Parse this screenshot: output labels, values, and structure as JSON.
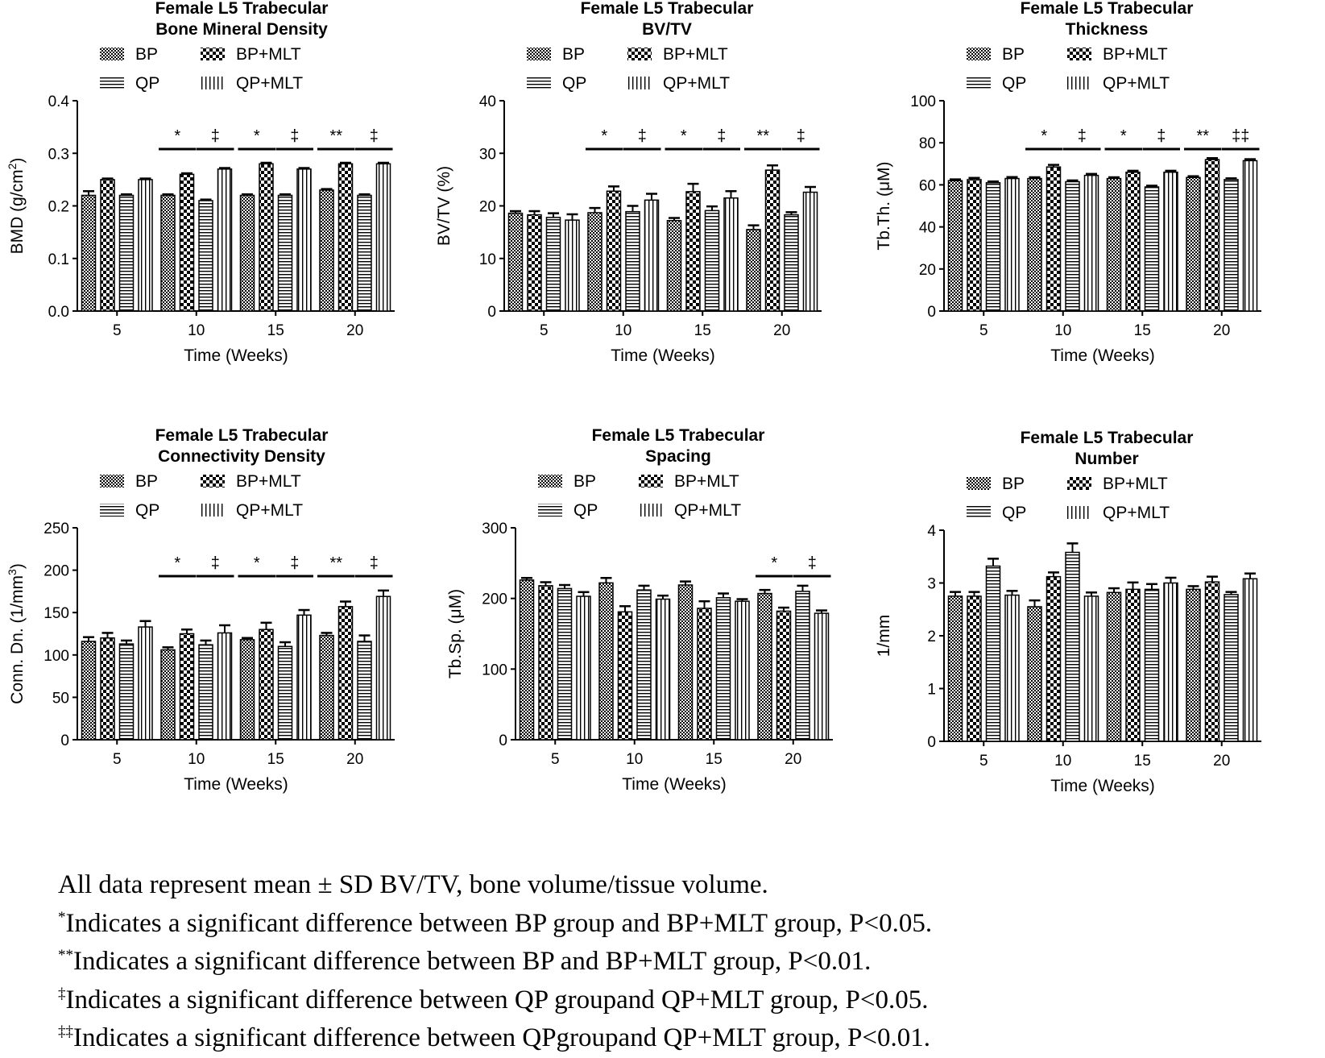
{
  "legend": {
    "bp": "BP",
    "bp_mlt": "BP+MLT",
    "qp": "QP",
    "qp_mlt": "QP+MLT"
  },
  "chart_data": [
    {
      "type": "bar",
      "title": [
        "Female L5 Trabecular",
        "Bone Mineral Density"
      ],
      "xlabel": "Time (Weeks)",
      "ylabel": "BMD (g/cm2)",
      "ylim": [
        0,
        0.4
      ],
      "yticks": [
        "0.0",
        "0.1",
        "0.2",
        "0.3",
        "0.4"
      ],
      "categories": [
        "5",
        "10",
        "15",
        "20"
      ],
      "series": [
        {
          "name": "BP",
          "values": [
            0.22,
            0.22,
            0.22,
            0.23
          ],
          "err": [
            0.008,
            0.002,
            0.002,
            0.002
          ]
        },
        {
          "name": "BP+MLT",
          "values": [
            0.25,
            0.26,
            0.28,
            0.28
          ],
          "err": [
            0.002,
            0.002,
            0.002,
            0.002
          ]
        },
        {
          "name": "QP",
          "values": [
            0.22,
            0.21,
            0.22,
            0.22
          ],
          "err": [
            0.002,
            0.002,
            0.002,
            0.002
          ]
        },
        {
          "name": "QP+MLT",
          "values": [
            0.25,
            0.27,
            0.27,
            0.28
          ],
          "err": [
            0.002,
            0.002,
            0.002,
            0.002
          ]
        }
      ],
      "significance": [
        {
          "category": 1,
          "pair": "BP",
          "mark": "*"
        },
        {
          "category": 1,
          "pair": "QP",
          "mark": "‡"
        },
        {
          "category": 2,
          "pair": "BP",
          "mark": "*"
        },
        {
          "category": 2,
          "pair": "QP",
          "mark": "‡"
        },
        {
          "category": 3,
          "pair": "BP",
          "mark": "**"
        },
        {
          "category": 3,
          "pair": "QP",
          "mark": "‡"
        }
      ]
    },
    {
      "type": "bar",
      "title": [
        "Female L5 Trabecular",
        "BV/TV"
      ],
      "xlabel": "Time (Weeks)",
      "ylabel": "BV/TV (%)",
      "ylim": [
        0,
        40
      ],
      "yticks": [
        "0",
        "10",
        "20",
        "30",
        "40"
      ],
      "categories": [
        "5",
        "10",
        "15",
        "20"
      ],
      "series": [
        {
          "name": "BP",
          "values": [
            18.6,
            18.7,
            17.2,
            15.5
          ],
          "err": [
            0.4,
            0.9,
            0.5,
            0.8
          ]
        },
        {
          "name": "BP+MLT",
          "values": [
            18.3,
            22.8,
            22.7,
            26.8
          ],
          "err": [
            0.7,
            0.9,
            1.5,
            0.9
          ]
        },
        {
          "name": "QP",
          "values": [
            17.8,
            18.9,
            19.1,
            18.3
          ],
          "err": [
            0.8,
            1.1,
            0.8,
            0.5
          ]
        },
        {
          "name": "QP+MLT",
          "values": [
            17.3,
            21.1,
            21.5,
            22.6
          ],
          "err": [
            1.1,
            1.2,
            1.3,
            1.0
          ]
        }
      ],
      "significance": [
        {
          "category": 1,
          "pair": "BP",
          "mark": "*"
        },
        {
          "category": 1,
          "pair": "QP",
          "mark": "‡"
        },
        {
          "category": 2,
          "pair": "BP",
          "mark": "*"
        },
        {
          "category": 2,
          "pair": "QP",
          "mark": "‡"
        },
        {
          "category": 3,
          "pair": "BP",
          "mark": "**"
        },
        {
          "category": 3,
          "pair": "QP",
          "mark": "‡"
        }
      ]
    },
    {
      "type": "bar",
      "title": [
        "Female L5 Trabecular",
        "Thickness"
      ],
      "xlabel": "Time (Weeks)",
      "ylabel": "Tb.Th. (μM)",
      "ylim": [
        0,
        100
      ],
      "yticks": [
        "0",
        "20",
        "40",
        "60",
        "80",
        "100"
      ],
      "categories": [
        "5",
        "10",
        "15",
        "20"
      ],
      "series": [
        {
          "name": "BP",
          "values": [
            62,
            63,
            63,
            63.5
          ],
          "err": [
            0.6,
            0.6,
            0.6,
            0.6
          ]
        },
        {
          "name": "BP+MLT",
          "values": [
            62.5,
            68.5,
            66,
            72
          ],
          "err": [
            0.8,
            1.0,
            0.7,
            0.7
          ]
        },
        {
          "name": "QP",
          "values": [
            61,
            61.5,
            59,
            62.5
          ],
          "err": [
            0.6,
            0.6,
            0.6,
            0.6
          ]
        },
        {
          "name": "QP+MLT",
          "values": [
            63,
            64.5,
            66,
            71.5
          ],
          "err": [
            0.7,
            0.7,
            0.7,
            0.7
          ]
        }
      ],
      "significance": [
        {
          "category": 1,
          "pair": "BP",
          "mark": "*"
        },
        {
          "category": 1,
          "pair": "QP",
          "mark": "‡"
        },
        {
          "category": 2,
          "pair": "BP",
          "mark": "*"
        },
        {
          "category": 2,
          "pair": "QP",
          "mark": "‡"
        },
        {
          "category": 3,
          "pair": "BP",
          "mark": "**"
        },
        {
          "category": 3,
          "pair": "QP",
          "mark": "‡‡"
        }
      ]
    },
    {
      "type": "bar",
      "title": [
        "Female L5 Trabecular",
        "Connectivity Density"
      ],
      "xlabel": "Time (Weeks)",
      "ylabel": "Conn. Dn. (1/mm3)",
      "ylim": [
        0,
        250
      ],
      "yticks": [
        "0",
        "50",
        "100",
        "150",
        "200",
        "250"
      ],
      "categories": [
        "5",
        "10",
        "15",
        "20"
      ],
      "series": [
        {
          "name": "BP",
          "values": [
            116,
            106,
            118,
            123
          ],
          "err": [
            5,
            3,
            2,
            3
          ]
        },
        {
          "name": "BP+MLT",
          "values": [
            120,
            125,
            130,
            157
          ],
          "err": [
            6,
            5,
            8,
            6
          ]
        },
        {
          "name": "QP",
          "values": [
            113,
            112,
            110,
            116
          ],
          "err": [
            4,
            5,
            5,
            7
          ]
        },
        {
          "name": "QP+MLT",
          "values": [
            133,
            126,
            147,
            169
          ],
          "err": [
            7,
            9,
            6,
            7
          ]
        }
      ],
      "significance": [
        {
          "category": 1,
          "pair": "BP",
          "mark": "*"
        },
        {
          "category": 1,
          "pair": "QP",
          "mark": "‡"
        },
        {
          "category": 2,
          "pair": "BP",
          "mark": "*"
        },
        {
          "category": 2,
          "pair": "QP",
          "mark": "‡"
        },
        {
          "category": 3,
          "pair": "BP",
          "mark": "**"
        },
        {
          "category": 3,
          "pair": "QP",
          "mark": "‡"
        }
      ]
    },
    {
      "type": "bar",
      "title": [
        "Female L5 Trabecular",
        "Spacing"
      ],
      "xlabel": "Time (Weeks)",
      "ylabel": "Tb.Sp. (μM)",
      "ylim": [
        0,
        300
      ],
      "yticks": [
        "0",
        "100",
        "200",
        "300"
      ],
      "categories": [
        "5",
        "10",
        "15",
        "20"
      ],
      "series": [
        {
          "name": "BP",
          "values": [
            226,
            222,
            219,
            207
          ],
          "err": [
            3,
            7,
            5,
            5
          ]
        },
        {
          "name": "BP+MLT",
          "values": [
            218,
            181,
            186,
            182
          ],
          "err": [
            5,
            8,
            10,
            5
          ]
        },
        {
          "name": "QP",
          "values": [
            214,
            212,
            201,
            210
          ],
          "err": [
            5,
            6,
            6,
            8
          ]
        },
        {
          "name": "QP+MLT",
          "values": [
            203,
            199,
            196,
            179
          ],
          "err": [
            6,
            5,
            3,
            4
          ]
        }
      ],
      "significance": [
        {
          "category": 3,
          "pair": "BP",
          "mark": "*"
        },
        {
          "category": 3,
          "pair": "QP",
          "mark": "‡"
        }
      ]
    },
    {
      "type": "bar",
      "title": [
        "Female L5 Trabecular",
        "Number"
      ],
      "xlabel": "Time (Weeks)",
      "ylabel": "1/mm",
      "ylim": [
        0,
        4
      ],
      "yticks": [
        "0",
        "1",
        "2",
        "3",
        "4"
      ],
      "categories": [
        "5",
        "10",
        "15",
        "20"
      ],
      "series": [
        {
          "name": "BP",
          "values": [
            2.75,
            2.55,
            2.82,
            2.88
          ],
          "err": [
            0.08,
            0.12,
            0.08,
            0.06
          ]
        },
        {
          "name": "BP+MLT",
          "values": [
            2.75,
            3.12,
            2.88,
            3.02
          ],
          "err": [
            0.08,
            0.08,
            0.13,
            0.1
          ]
        },
        {
          "name": "QP",
          "values": [
            3.32,
            3.58,
            2.88,
            2.78
          ],
          "err": [
            0.14,
            0.17,
            0.1,
            0.05
          ]
        },
        {
          "name": "QP+MLT",
          "values": [
            2.77,
            2.75,
            3.0,
            3.08
          ],
          "err": [
            0.08,
            0.07,
            0.1,
            0.1
          ]
        }
      ],
      "significance": []
    }
  ],
  "notes": {
    "line1": "All data represent mean ± SD  BV/TV, bone volume/tissue volume.",
    "line2_mark": "*",
    "line2": "Indicates a significant difference between BP group and BP+MLT group, P<0.05.",
    "line3_mark": "**",
    "line3": "Indicates a significant difference between BP and BP+MLT group, P<0.01.",
    "line4_mark": "‡",
    "line4": "Indicates a significant difference between QP groupand QP+MLT group, P<0.05.",
    "line5_mark": "‡‡",
    "line5": "Indicates a significant difference between QPgroupand QP+MLT group, P<0.01."
  }
}
